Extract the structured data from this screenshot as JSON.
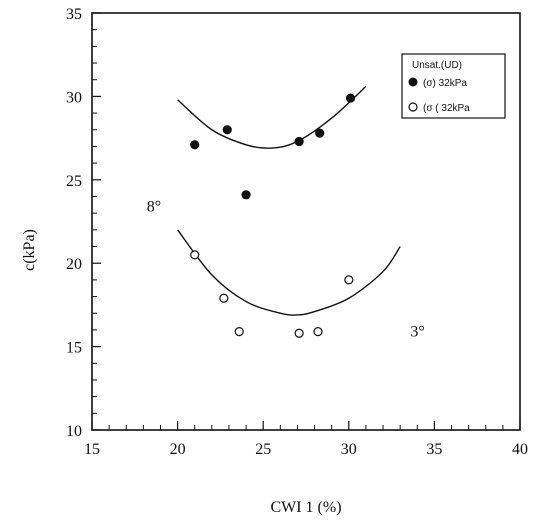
{
  "chart_data": {
    "type": "scatter",
    "title": "",
    "xlabel": "CWI 1 (%)",
    "ylabel": "c(kPa)",
    "xlim": [
      15,
      40
    ],
    "ylim": [
      10,
      35
    ],
    "xticks": [
      15,
      20,
      25,
      30,
      35,
      40
    ],
    "yticks": [
      10,
      15,
      20,
      25,
      30,
      35
    ],
    "grid": false,
    "legend": {
      "position": "top-right",
      "title": "Unsat.(UD)",
      "entries": [
        {
          "label": "(σ) 32kPa",
          "marker": "filled-circle"
        },
        {
          "label": "(σ ( 32kPa",
          "marker": "open-circle"
        }
      ]
    },
    "series": [
      {
        "name": "(σ) 32kPa",
        "marker": "filled-circle",
        "points": [
          {
            "x": 21.0,
            "y": 27.1
          },
          {
            "x": 22.9,
            "y": 28.0
          },
          {
            "x": 24.0,
            "y": 24.1
          },
          {
            "x": 27.1,
            "y": 27.3
          },
          {
            "x": 28.3,
            "y": 27.8
          },
          {
            "x": 30.1,
            "y": 29.9
          }
        ],
        "trend": {
          "x": [
            20,
            22,
            24,
            25.5,
            27,
            29,
            31
          ],
          "y": [
            29.8,
            28.0,
            27.1,
            26.9,
            27.3,
            28.7,
            30.6
          ]
        }
      },
      {
        "name": "(σ ( 32kPa",
        "marker": "open-circle",
        "points": [
          {
            "x": 21.0,
            "y": 20.5
          },
          {
            "x": 22.7,
            "y": 17.9
          },
          {
            "x": 23.6,
            "y": 15.9
          },
          {
            "x": 27.1,
            "y": 15.8
          },
          {
            "x": 28.2,
            "y": 15.9
          },
          {
            "x": 30.0,
            "y": 19.0
          }
        ],
        "trend": {
          "x": [
            20,
            22,
            24,
            26,
            27,
            28,
            30,
            32,
            33
          ],
          "y": [
            22.0,
            19.3,
            17.7,
            17.0,
            16.9,
            17.1,
            17.9,
            19.5,
            21.0
          ]
        }
      }
    ],
    "annotations": [
      {
        "text": "8°",
        "x": 18.2,
        "y": 23.1
      },
      {
        "text": "3°",
        "x": 33.6,
        "y": 15.6
      }
    ]
  }
}
